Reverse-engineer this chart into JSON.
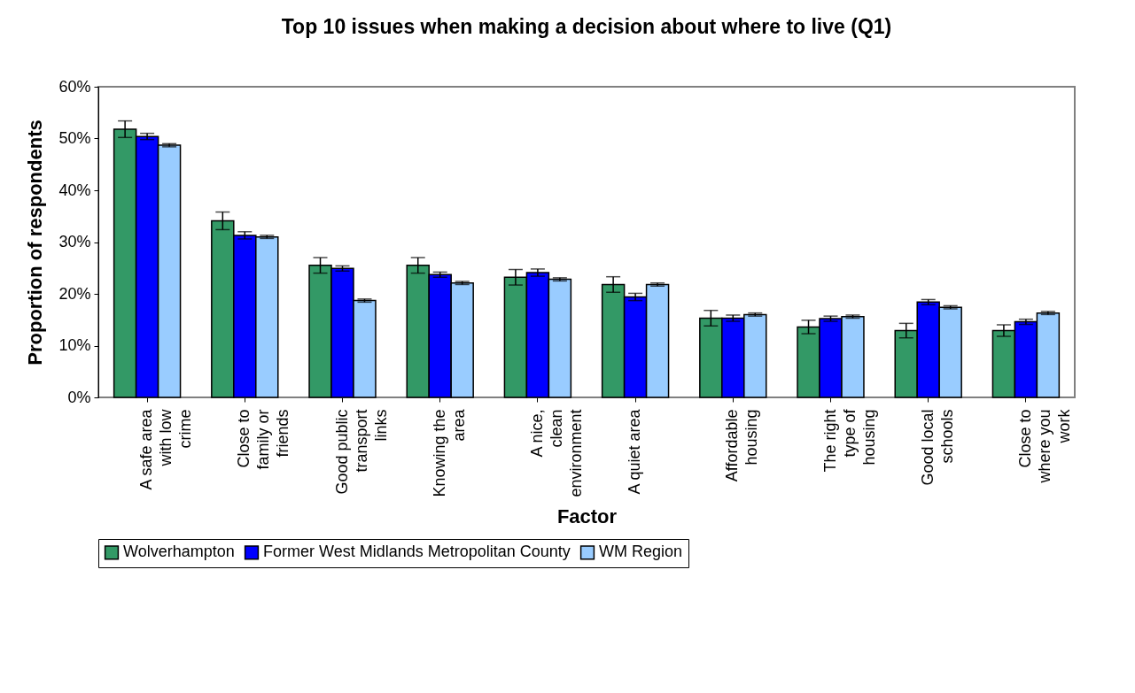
{
  "chart_data": {
    "type": "bar",
    "title": "Top 10 issues when making a decision about where to live (Q1)",
    "xlabel": "Factor",
    "ylabel": "Proportion of respondents",
    "categories": [
      "A safe area\nwith low\ncrime",
      "Close to\nfamily or\nfriends",
      "Good public\ntransport\nlinks",
      "Knowing the\narea",
      "A nice,\nclean\nenvironment",
      "A quiet area",
      "Affordable\nhousing",
      "The right\ntype of\nhousing",
      "Good local\nschools",
      "Close to\nwhere you\nwork"
    ],
    "series": [
      {
        "name": "Wolverhampton",
        "color": "#339966",
        "values": [
          51.8,
          34.1,
          25.5,
          25.5,
          23.2,
          21.8,
          15.3,
          13.6,
          12.9,
          12.9
        ],
        "errors": [
          1.6,
          1.7,
          1.5,
          1.5,
          1.5,
          1.5,
          1.5,
          1.3,
          1.4,
          1.1
        ]
      },
      {
        "name": "Former West Midlands Metropolitan County",
        "color": "#0000ff",
        "values": [
          50.4,
          31.3,
          24.9,
          23.7,
          24.1,
          19.4,
          15.3,
          15.2,
          18.4,
          14.6
        ],
        "errors": [
          0.6,
          0.7,
          0.5,
          0.5,
          0.7,
          0.7,
          0.6,
          0.5,
          0.5,
          0.5
        ]
      },
      {
        "name": "WM Region",
        "color": "#99ccff",
        "values": [
          48.7,
          31.0,
          18.7,
          22.1,
          22.8,
          21.8,
          16.0,
          15.6,
          17.4,
          16.3
        ],
        "errors": [
          0.3,
          0.3,
          0.3,
          0.3,
          0.3,
          0.3,
          0.3,
          0.3,
          0.3,
          0.3
        ]
      }
    ],
    "ylim": [
      0,
      60
    ],
    "yticks": [
      {
        "value": 0,
        "label": "0%"
      },
      {
        "value": 10,
        "label": "10%"
      },
      {
        "value": 20,
        "label": "20%"
      },
      {
        "value": 30,
        "label": "30%"
      },
      {
        "value": 40,
        "label": "40%"
      },
      {
        "value": 50,
        "label": "50%"
      },
      {
        "value": 60,
        "label": "60%"
      }
    ],
    "grid": false,
    "legend": "bottom"
  }
}
